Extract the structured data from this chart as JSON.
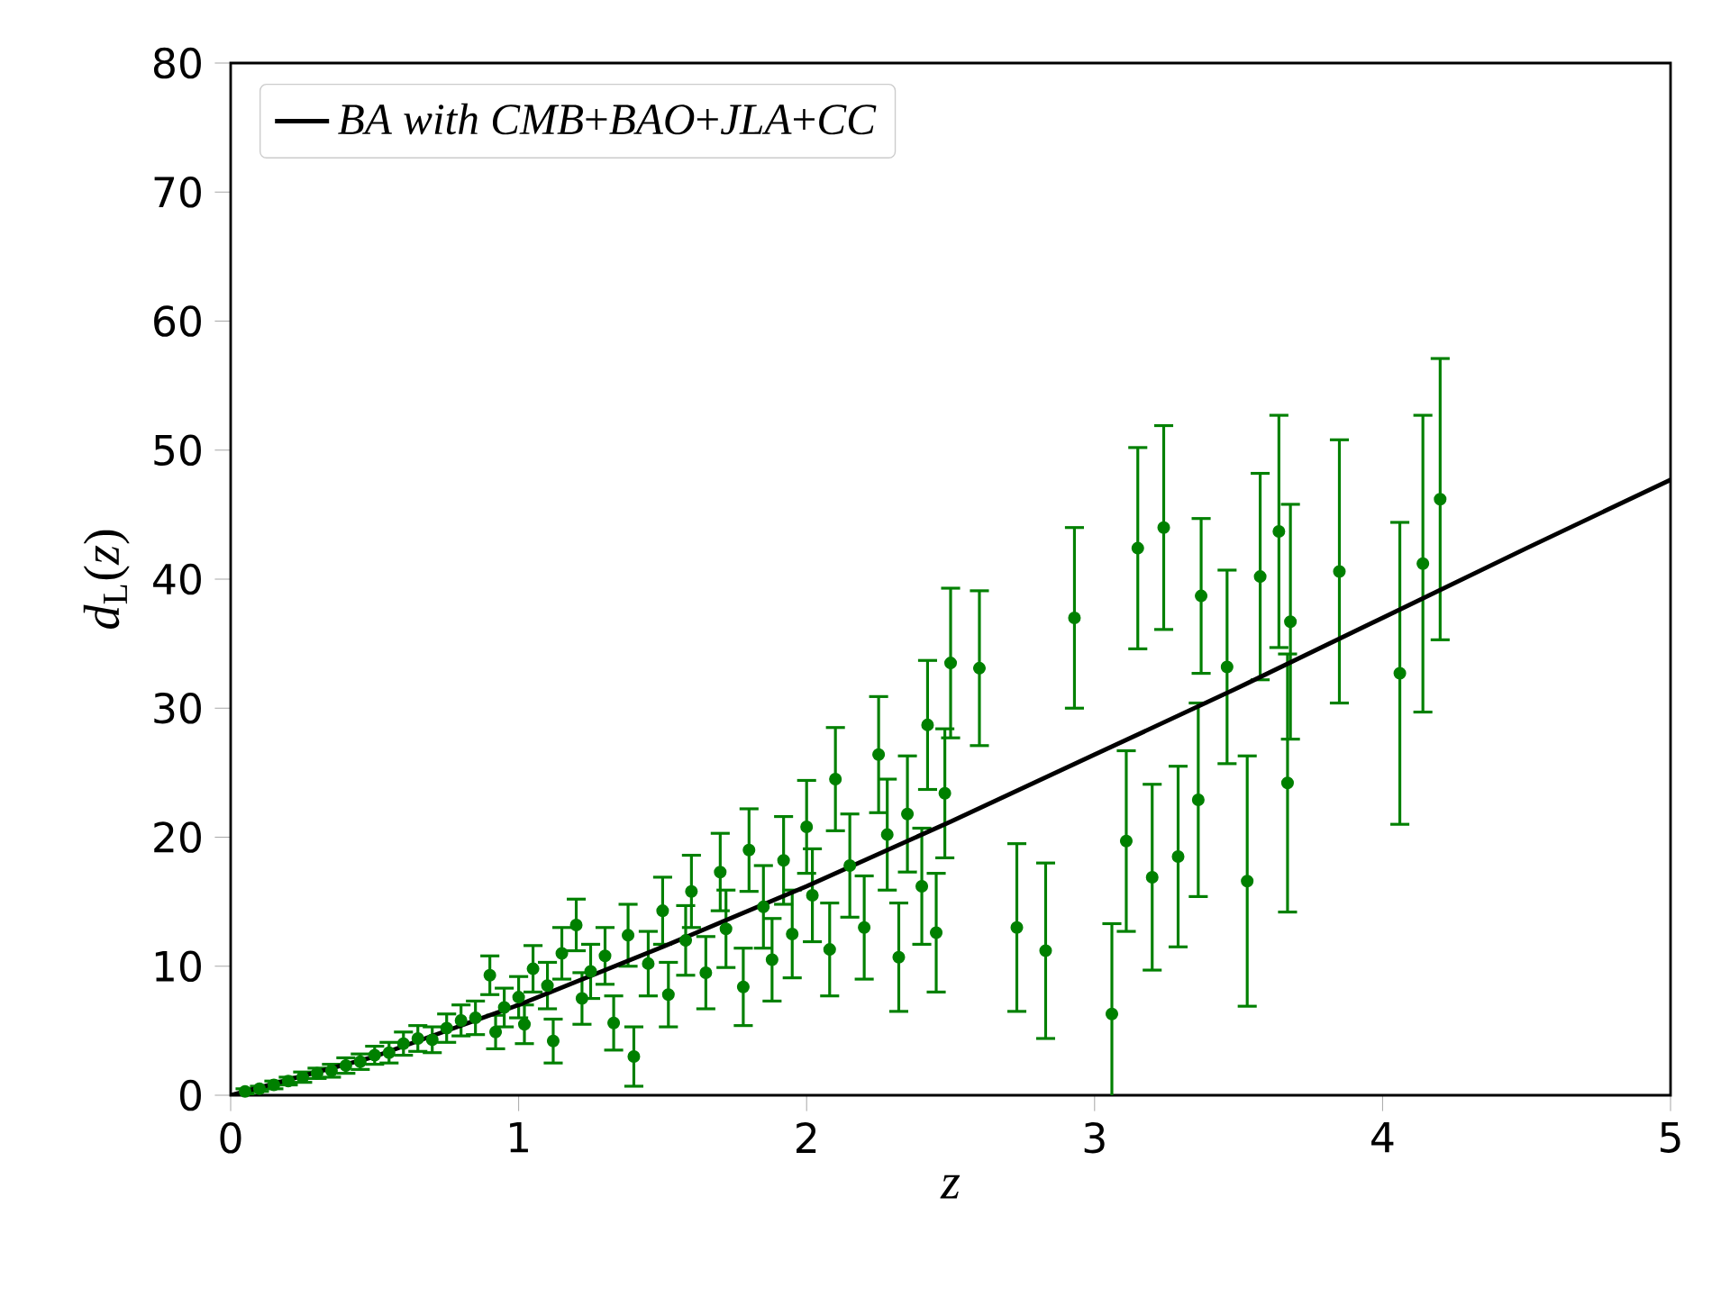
{
  "chart_data": {
    "type": "scatter",
    "xlabel": "*z*",
    "ylabel": "*d*$_{L}$(*z*)",
    "xlim": [
      0,
      5
    ],
    "ylim": [
      0,
      80
    ],
    "xticks": [
      0,
      1,
      2,
      3,
      4,
      5
    ],
    "yticks": [
      0,
      10,
      20,
      30,
      40,
      50,
      60,
      70,
      80
    ],
    "legend": "top left",
    "grid": false,
    "series": [
      {
        "color": "#008000",
        "marker": "circle",
        "x": [
          0.05,
          0.1,
          0.15,
          0.2,
          0.25,
          0.3,
          0.35,
          0.4,
          0.45,
          0.5,
          0.55,
          0.6,
          0.65,
          0.7,
          0.75,
          0.8,
          0.85,
          0.9,
          0.92,
          0.95,
          1.0,
          1.02,
          1.05,
          1.1,
          1.12,
          1.15,
          1.2,
          1.22,
          1.25,
          1.3,
          1.33,
          1.38,
          1.4,
          1.45,
          1.5,
          1.52,
          1.58,
          1.6,
          1.65,
          1.7,
          1.72,
          1.78,
          1.8,
          1.85,
          1.88,
          1.92,
          1.95,
          2.0,
          2.02,
          2.08,
          2.1,
          2.15,
          2.2,
          2.25,
          2.28,
          2.32,
          2.35,
          2.4,
          2.42,
          2.45,
          2.48,
          2.5,
          2.6,
          2.73,
          2.83,
          2.93,
          3.06,
          3.11,
          3.15,
          3.2,
          3.24,
          3.29,
          3.36,
          3.37,
          3.46,
          3.53,
          3.575,
          3.64,
          3.67,
          3.68,
          3.85,
          4.06,
          4.14,
          4.2
        ],
        "values": [
          0.3,
          0.5,
          0.8,
          1.1,
          1.4,
          1.7,
          1.9,
          2.3,
          2.6,
          3.1,
          3.3,
          4.0,
          4.4,
          4.3,
          5.2,
          5.8,
          6.0,
          9.3,
          4.9,
          6.8,
          7.6,
          5.5,
          9.8,
          8.5,
          4.2,
          11.0,
          13.2,
          7.5,
          9.6,
          10.8,
          5.6,
          12.4,
          3.0,
          10.2,
          14.3,
          7.8,
          12.0,
          15.8,
          9.5,
          17.3,
          12.9,
          8.4,
          19.0,
          14.6,
          10.5,
          18.2,
          12.5,
          20.8,
          15.5,
          11.3,
          24.5,
          17.8,
          13.0,
          26.4,
          20.2,
          10.7,
          21.8,
          16.2,
          28.7,
          12.6,
          23.4,
          33.5,
          33.1,
          13.0,
          11.2,
          37.0,
          6.3,
          19.7,
          42.4,
          16.9,
          44.0,
          18.5,
          22.9,
          38.7,
          33.2,
          16.6,
          40.2,
          43.7,
          24.2,
          36.7,
          40.6,
          32.7,
          41.2,
          46.2
        ],
        "errors": [
          0.2,
          0.2,
          0.3,
          0.3,
          0.4,
          0.4,
          0.5,
          0.6,
          0.6,
          0.7,
          0.8,
          0.9,
          1.0,
          1.0,
          1.1,
          1.2,
          1.3,
          1.5,
          1.3,
          1.5,
          1.6,
          1.5,
          1.8,
          1.8,
          1.7,
          2.0,
          2.0,
          2.0,
          2.1,
          2.2,
          2.1,
          2.4,
          2.3,
          2.5,
          2.6,
          2.5,
          2.7,
          2.8,
          2.8,
          3.0,
          3.0,
          3.0,
          3.2,
          3.2,
          3.2,
          3.4,
          3.4,
          3.6,
          3.6,
          3.6,
          4.0,
          4.0,
          4.0,
          4.5,
          4.3,
          4.2,
          4.5,
          4.5,
          5.0,
          4.6,
          5.0,
          5.8,
          6.0,
          6.5,
          6.8,
          7.0,
          7.0,
          7.0,
          7.8,
          7.2,
          7.9,
          7.0,
          7.5,
          6.0,
          7.5,
          9.7,
          8.0,
          9.0,
          10.0,
          9.1,
          10.2,
          11.7,
          11.5,
          10.9
        ]
      },
      {
        "type": "line",
        "name": "*BA with CMB*+*BAO*+*JLA*+*CC*",
        "color": "#000000",
        "line_style": "solid",
        "marker": "none",
        "x": [
          0,
          0.5,
          1,
          1.5,
          2,
          2.5,
          3,
          3.5,
          4,
          4.5,
          5
        ],
        "values": [
          0,
          3.0,
          7.0,
          11.5,
          16.2,
          21.2,
          26.4,
          31.6,
          37.0,
          42.4,
          47.7
        ]
      }
    ]
  }
}
